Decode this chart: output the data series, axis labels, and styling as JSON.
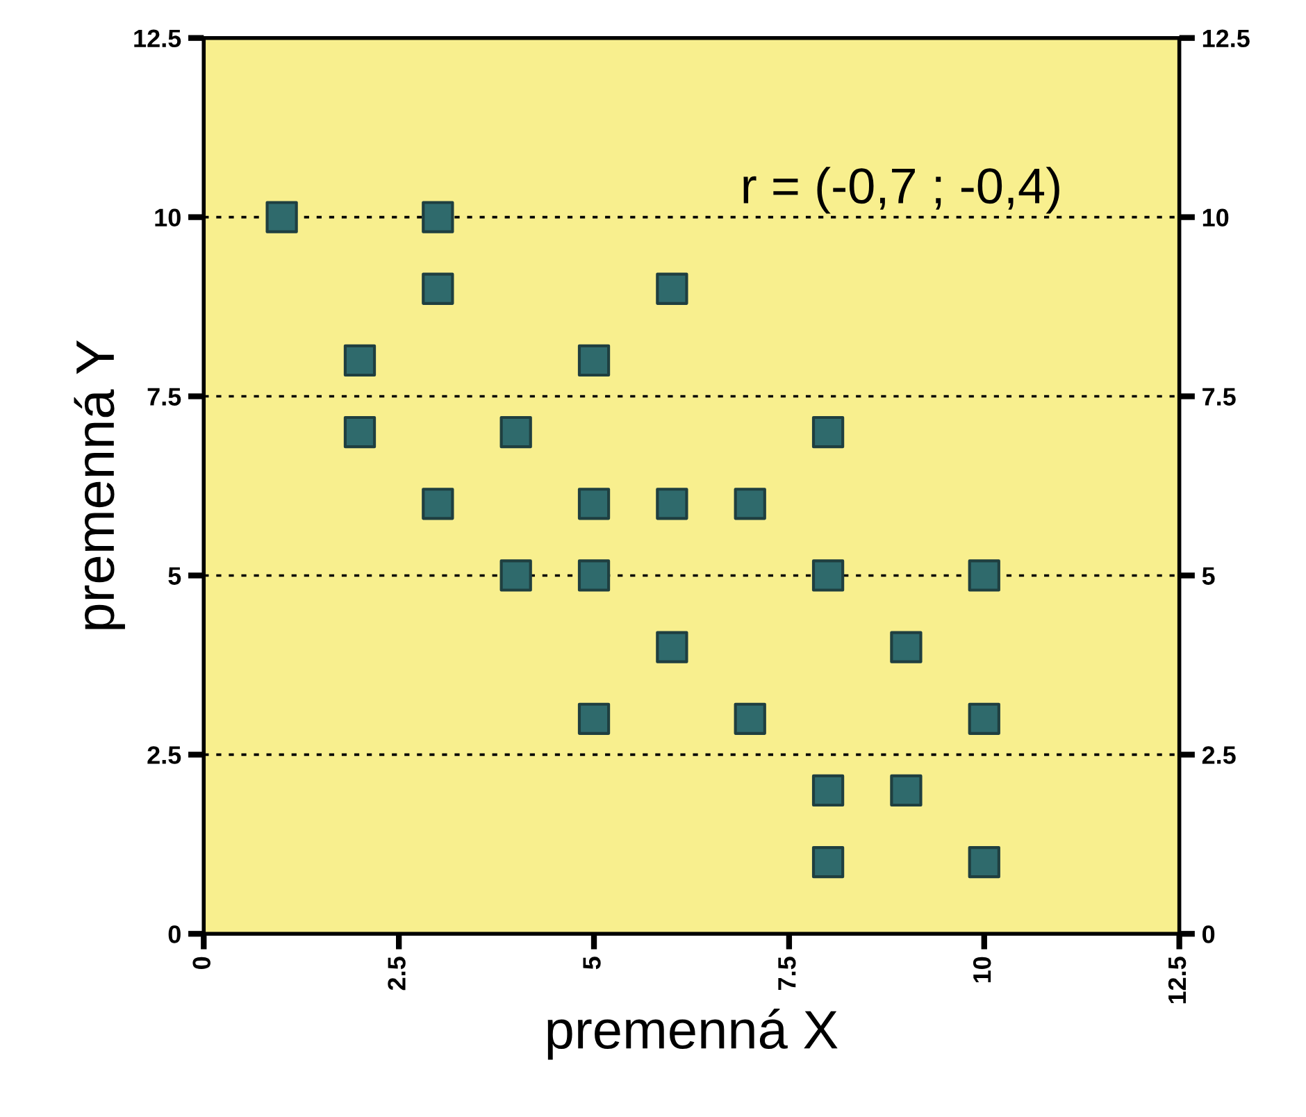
{
  "chart_data": {
    "type": "scatter",
    "xlabel": "premenná X",
    "ylabel": "premenná Y",
    "x": [
      1,
      3,
      3,
      6,
      2,
      5,
      2,
      4,
      8,
      3,
      5,
      6,
      7,
      4,
      5,
      8,
      10,
      6,
      9,
      5,
      7,
      10,
      8,
      9,
      8,
      10
    ],
    "values": [
      10,
      10,
      9,
      9,
      8,
      8,
      7,
      7,
      7,
      6,
      6,
      6,
      6,
      5,
      5,
      5,
      5,
      4,
      4,
      3,
      3,
      3,
      2,
      2,
      1,
      1
    ],
    "color": "#2f6a6c",
    "marker": "square",
    "xlim": [
      0,
      12.5
    ],
    "xticks": [
      0,
      2.5,
      5,
      7.5,
      10,
      12.5
    ],
    "ylim": [
      0,
      12.5
    ],
    "yticks": [
      0,
      2.5,
      5,
      7.5,
      10,
      12.5
    ],
    "y2lim": [
      0,
      12.5
    ],
    "y2ticks": [
      0,
      2.5,
      5,
      7.5,
      10,
      12.5
    ],
    "grid": "y",
    "annotations": [
      "r = (-0,7 ; -0,4)"
    ]
  }
}
